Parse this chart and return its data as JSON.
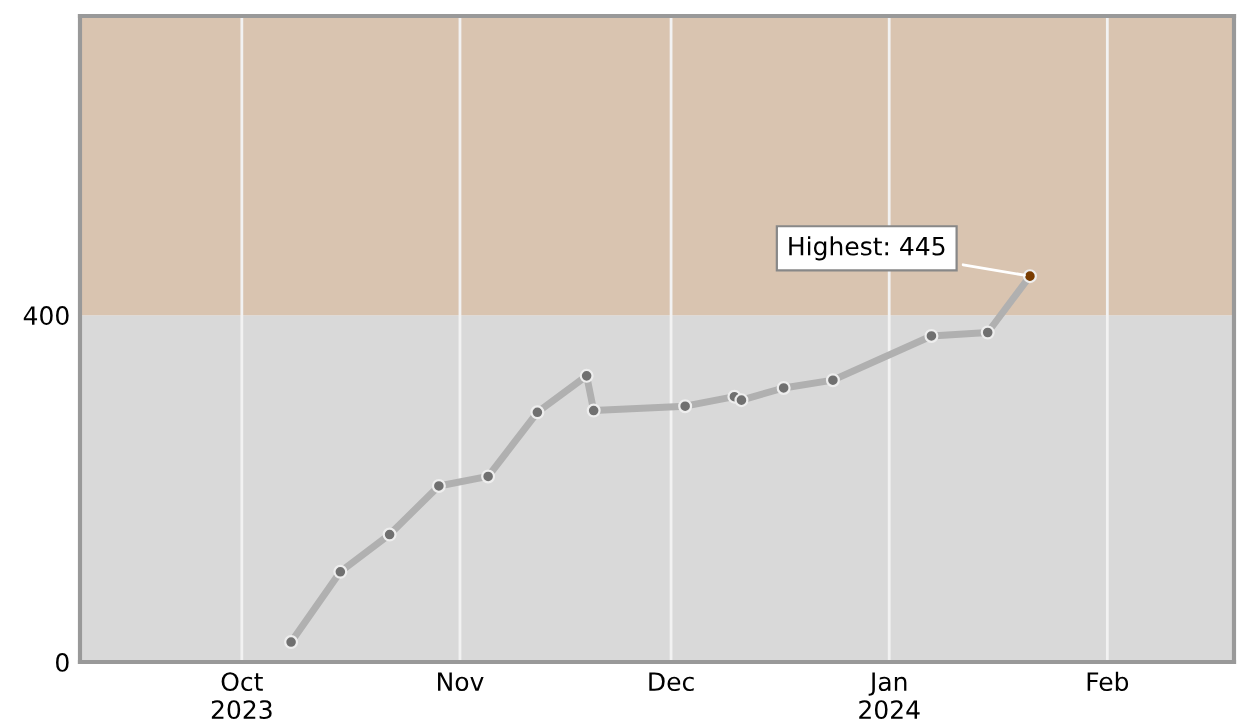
{
  "chart_data": {
    "type": "line",
    "x": [
      "2023-10-08",
      "2023-10-15",
      "2023-10-22",
      "2023-10-29",
      "2023-11-05",
      "2023-11-12",
      "2023-11-19",
      "2023-11-20",
      "2023-12-03",
      "2023-12-10",
      "2023-12-11",
      "2023-12-17",
      "2023-12-24",
      "2024-01-07",
      "2024-01-15",
      "2024-01-21"
    ],
    "series": [
      {
        "color": "#b0b0b0",
        "colors": [
          "#707070",
          "#707070",
          "#707070",
          "#707070",
          "#707070",
          "#707070",
          "#707070",
          "#707070",
          "#707070",
          "#707070",
          "#707070",
          "#707070",
          "#707070",
          "#707070",
          "#707070",
          "#7a3c00"
        ],
        "values": [
          23,
          104,
          147,
          203,
          214,
          288,
          330,
          290,
          295,
          306,
          302,
          316,
          325,
          376,
          380,
          445
        ]
      }
    ],
    "xlim": [
      "2023-09-08",
      "2024-02-19"
    ],
    "xticks": [
      {
        "value": "2023-10-01",
        "label": "Oct\n2023"
      },
      {
        "value": "2023-11-01",
        "label": "Nov"
      },
      {
        "value": "2023-12-01",
        "label": "Dec"
      },
      {
        "value": "2024-01-01",
        "label": "Jan\n2024"
      },
      {
        "value": "2024-02-01",
        "label": "Feb"
      }
    ],
    "ylim": [
      0,
      745
    ],
    "yticks": [
      0,
      400
    ],
    "bands": [
      {
        "axis": "y",
        "from": 0,
        "to": 400,
        "color": "#d9d9d9"
      },
      {
        "axis": "y",
        "from": 400,
        "to": 745,
        "color": "#d9c4b0"
      }
    ],
    "annotations": [
      {
        "text": "Highest: 445",
        "x": "2024-01-21",
        "y": 445
      }
    ],
    "grid": "x",
    "marker": "circle",
    "line_style": "solid",
    "legend": false
  }
}
